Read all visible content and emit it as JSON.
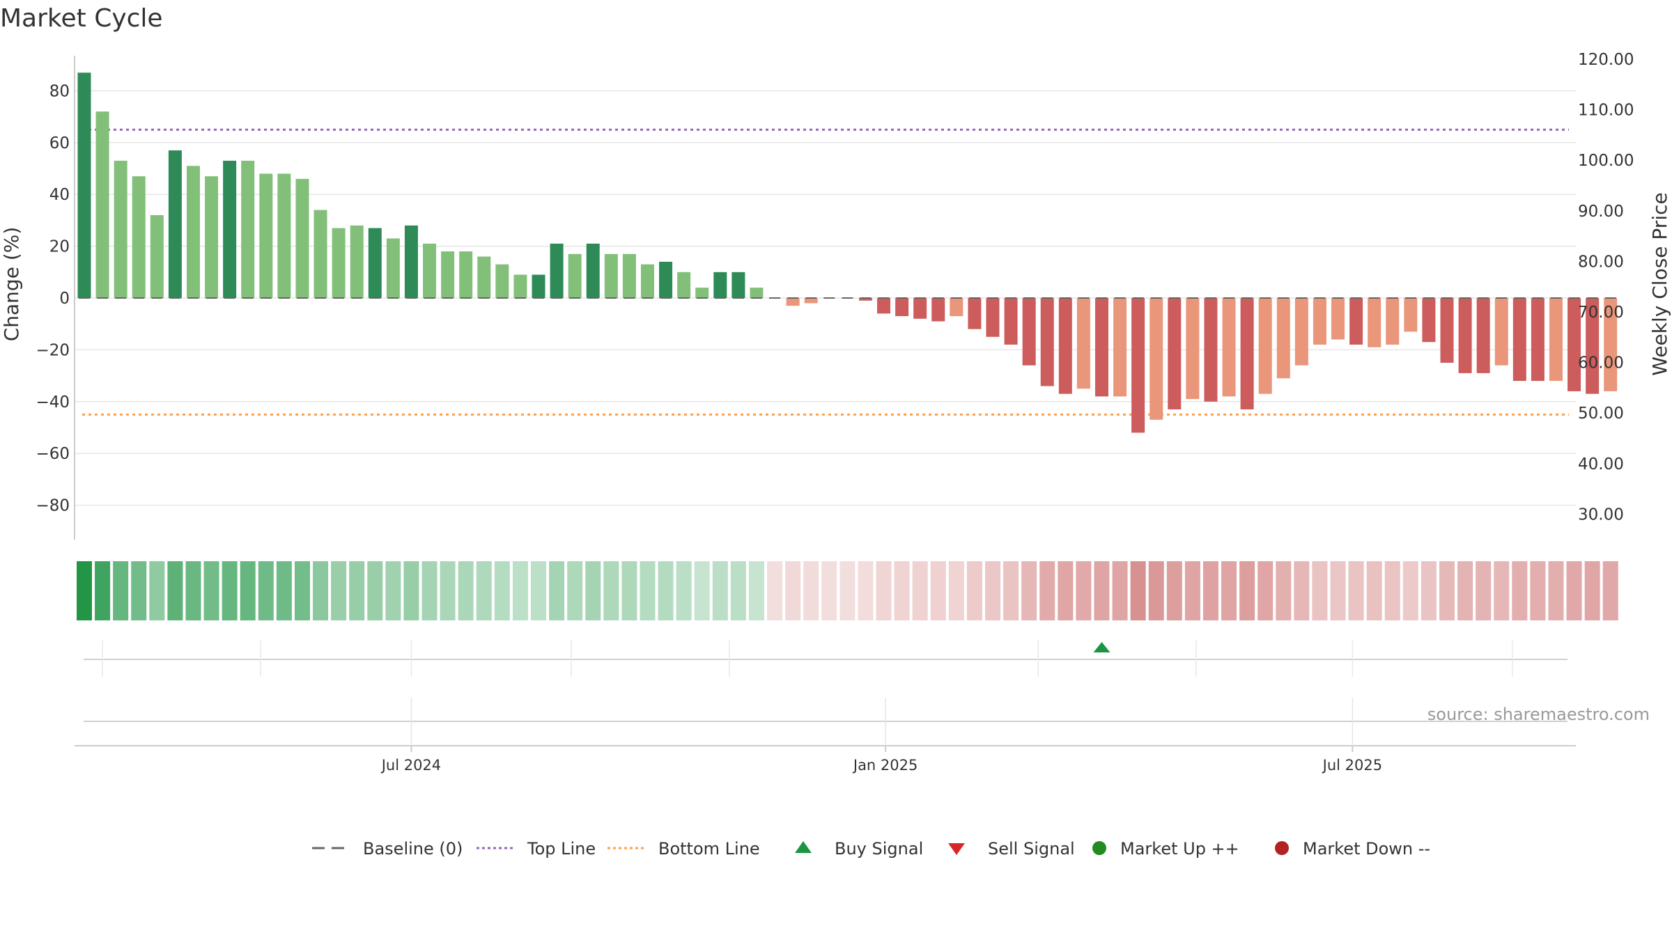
{
  "chart_data": {
    "type": "bar",
    "title": "Market Cycle",
    "source": "source: sharemaestro.com",
    "y_left": {
      "label": "Change (%)",
      "ticks": [
        80,
        60,
        40,
        20,
        0,
        -20,
        -40,
        -60,
        -80
      ],
      "tick_labels": [
        "80",
        "60",
        "40",
        "20",
        "0",
        "−20",
        "−40",
        "−60",
        "−80"
      ],
      "range": [
        -94,
        94
      ]
    },
    "y_right": {
      "label": "Weekly Close Price",
      "ticks": [
        120,
        110,
        100,
        90,
        80,
        70,
        60,
        50,
        40,
        30
      ],
      "tick_labels": [
        "120.00",
        "110.00",
        "100.00",
        "90.00",
        "80.00",
        "70.00",
        "60.00",
        "50.00",
        "40.00",
        "30.00"
      ]
    },
    "x_ticks": [
      {
        "label": "Jul 2024",
        "index": 18
      },
      {
        "label": "Jan 2025",
        "index": 44.1
      },
      {
        "label": "Jul 2025",
        "index": 69.8
      }
    ],
    "signal_vlines": [
      1,
      9.7,
      18,
      26.8,
      35.5,
      52.5,
      61.2,
      69.8,
      78.6
    ],
    "top_line": 65,
    "bottom_line": -45,
    "values": [
      87,
      72,
      53,
      47,
      32,
      57,
      51,
      47,
      53,
      53,
      48,
      48,
      46,
      34,
      27,
      28,
      27,
      23,
      28,
      21,
      18,
      18,
      16,
      13,
      9,
      9,
      21,
      17,
      21,
      17,
      17,
      13,
      14,
      10,
      4,
      10,
      10,
      4,
      0,
      -3,
      -2,
      0,
      0,
      -1,
      -6,
      -7,
      -8,
      -9,
      -7,
      -12,
      -15,
      -18,
      -26,
      -34,
      -37,
      -35,
      -38,
      -38,
      -52,
      -47,
      -43,
      -39,
      -40,
      -38,
      -43,
      -37,
      -31,
      -26,
      -18,
      -16,
      -18,
      -19,
      -18,
      -13,
      -17,
      -25,
      -29,
      -29,
      -26,
      -32,
      -32,
      -32,
      -36,
      -37,
      -36
    ],
    "colors": {
      "strong_up": "#2e8b57",
      "up": "#82c07a",
      "down": "#cd5c5c",
      "weak_down": "#e9967a",
      "top_line": "#9467bd",
      "bottom_line": "#ff9f4a",
      "baseline": "#666666",
      "buy": "#1a9641",
      "sell": "#d62728",
      "market_up": "#228b22",
      "market_down": "#b22222"
    },
    "strong_up_indices": [
      0,
      5,
      8,
      16,
      18,
      25,
      26,
      28,
      32,
      35,
      36
    ],
    "weak_down_indices": [
      39,
      40,
      48,
      55,
      57,
      59,
      61,
      63,
      65,
      66,
      67,
      68,
      69,
      71,
      72,
      73,
      78,
      81,
      84
    ],
    "buy_signals": [
      56
    ],
    "sell_signals": [],
    "legend": [
      {
        "label": "Baseline (0)",
        "type": "dash",
        "color": "#666666"
      },
      {
        "label": "Top Line",
        "type": "dots",
        "color": "#9467bd"
      },
      {
        "label": "Bottom Line",
        "type": "dots",
        "color": "#ff9f4a"
      },
      {
        "label": "Buy Signal",
        "type": "tri-up",
        "color": "#1a9641"
      },
      {
        "label": "Sell Signal",
        "type": "tri-down",
        "color": "#d62728"
      },
      {
        "label": "Market Up ++",
        "type": "circle",
        "color": "#228b22"
      },
      {
        "label": "Market Down --",
        "type": "circle",
        "color": "#b22222"
      }
    ]
  }
}
